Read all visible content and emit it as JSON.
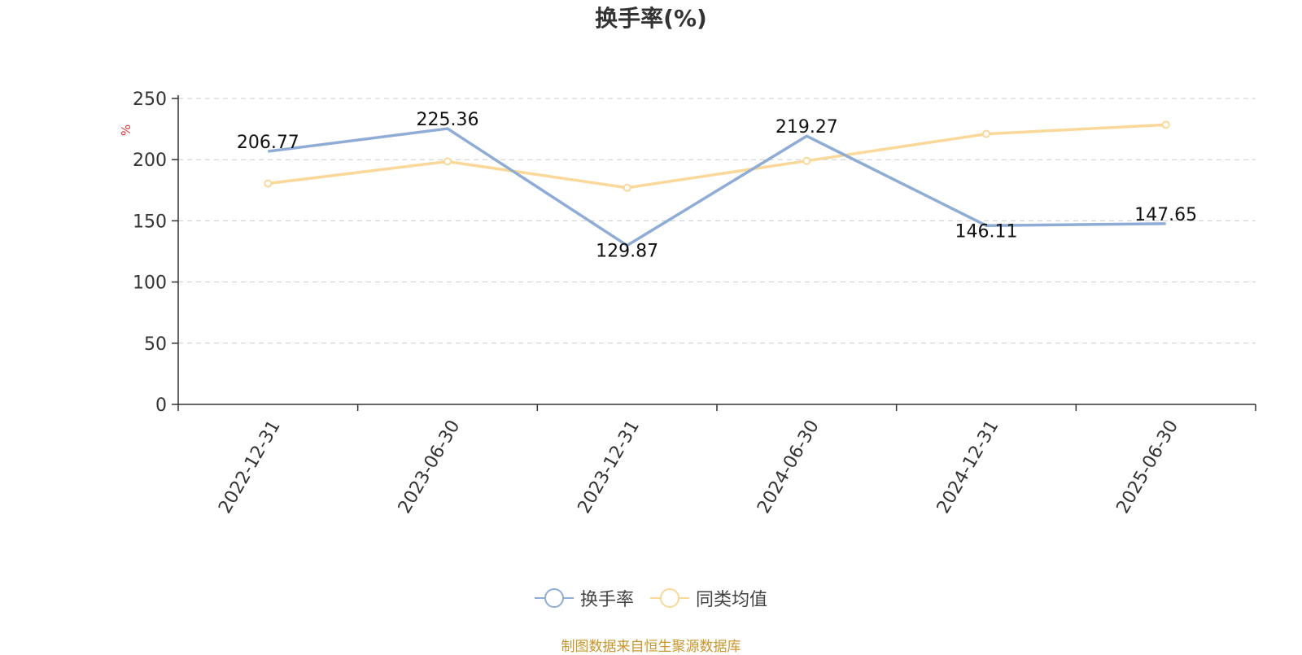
{
  "chart_data": {
    "type": "line",
    "title": "换手率(%)",
    "ylabel": "%",
    "categories": [
      "2022-12-31",
      "2023-06-30",
      "2023-12-31",
      "2024-06-30",
      "2024-12-31",
      "2025-06-30"
    ],
    "ylim": [
      0,
      250
    ],
    "yticks": [
      0,
      50,
      100,
      150,
      200,
      250
    ],
    "grid": true,
    "legend_position": "bottom",
    "series": [
      {
        "name": "换手率",
        "color": "#8eacd6",
        "values": [
          206.77,
          225.36,
          129.87,
          219.27,
          146.11,
          147.65
        ],
        "data_labels": [
          "206.77",
          "225.36",
          "129.87",
          "219.27",
          "146.11",
          "147.65"
        ]
      },
      {
        "name": "同类均值",
        "color": "#f9d899",
        "values": [
          180.5,
          198.5,
          177.0,
          199.0,
          221.0,
          228.5
        ]
      }
    ],
    "source_note": "制图数据来自恒生聚源数据库"
  }
}
